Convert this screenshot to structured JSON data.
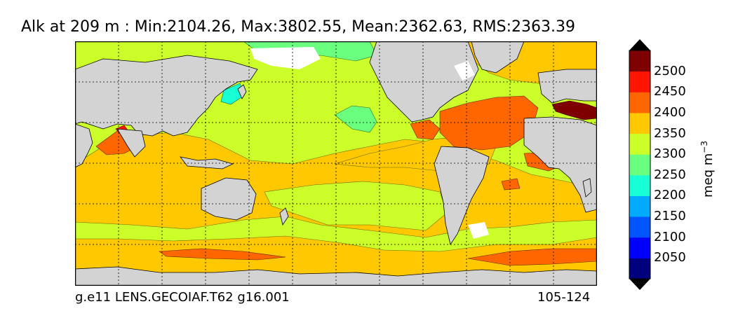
{
  "figure": {
    "title": "Alk at 209 m : Min:2104.26, Max:3802.55, Mean:2362.63, RMS:2363.39",
    "footer_left": "g.e11 LENS.GECOIAF.T62 g16.001",
    "footer_right": "105-124"
  },
  "colorbar": {
    "unit": "meq m",
    "unit_superscript": "−3",
    "ticks": [
      "2050",
      "2100",
      "2150",
      "2200",
      "2250",
      "2300",
      "2350",
      "2400",
      "2450",
      "2500"
    ],
    "levels": [
      {
        "lo": 2000,
        "hi": 2050,
        "color": "#00007f"
      },
      {
        "lo": 2050,
        "hi": 2100,
        "color": "#0000ff"
      },
      {
        "lo": 2100,
        "hi": 2150,
        "color": "#0055ff"
      },
      {
        "lo": 2150,
        "hi": 2200,
        "color": "#00aaff"
      },
      {
        "lo": 2200,
        "hi": 2250,
        "color": "#19ffd5"
      },
      {
        "lo": 2250,
        "hi": 2300,
        "color": "#6bff7f"
      },
      {
        "lo": 2300,
        "hi": 2350,
        "color": "#ccff2a"
      },
      {
        "lo": 2350,
        "hi": 2400,
        "color": "#ffc800"
      },
      {
        "lo": 2400,
        "hi": 2450,
        "color": "#ff6600"
      },
      {
        "lo": 2450,
        "hi": 2500,
        "color": "#ff1500"
      },
      {
        "lo": 2500,
        "hi": 2550,
        "color": "#7f0000"
      }
    ],
    "under_color": "#00007f",
    "over_color": "#000000"
  },
  "map": {
    "land_color": "#d3d3d3",
    "missing_color": "#ffffff",
    "projection": "cylindrical",
    "gridlines": "dotted",
    "fields": {
      "pacific": 2325,
      "pacific_northeast_patch": 2275,
      "atlantic_north": 2425,
      "indian_ocean": 2375,
      "southern_ocean_band": 2325,
      "mediterranean": 2525,
      "arctic": 2275
    }
  }
}
